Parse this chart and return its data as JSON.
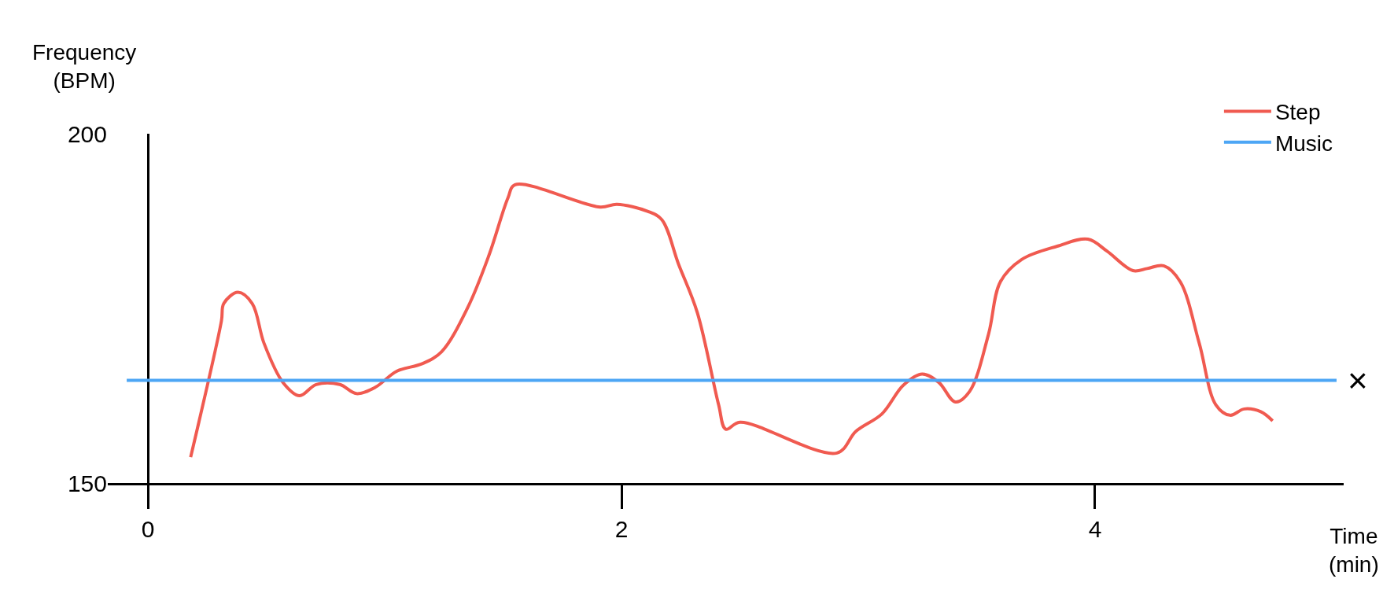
{
  "chart_data": {
    "type": "line",
    "xlabel": "Time (min)",
    "ylabel": "Frequency (BPM)",
    "xlim": [
      -0.17,
      5.05
    ],
    "ylim": [
      150,
      200
    ],
    "xticks": [
      0,
      2,
      4
    ],
    "yticks": [
      150,
      200
    ],
    "legend": "top right",
    "marker": "none",
    "line_style": "solid",
    "series": [
      {
        "name": "Step",
        "color": "#f05a50",
        "x": [
          0.18,
          0.31,
          0.32,
          0.38,
          0.44,
          0.49,
          0.57,
          0.64,
          0.71,
          0.81,
          0.88,
          0.96,
          1.05,
          1.16,
          1.24,
          1.35,
          1.44,
          1.52,
          1.55,
          1.91,
          1.98,
          2.11,
          2.17,
          2.24,
          2.32,
          2.41,
          2.44,
          2.5,
          2.91,
          2.99,
          3.1,
          3.19,
          3.27,
          3.34,
          3.41,
          3.47,
          3.55,
          3.6,
          3.69,
          3.84,
          3.97,
          4.05,
          4.16,
          4.22,
          4.29,
          4.36,
          4.44,
          4.51,
          4.57,
          4.63,
          4.7,
          4.75
        ],
        "values": [
          153.7,
          173.2,
          175.7,
          177.3,
          175.7,
          170.0,
          164.4,
          162.5,
          164.1,
          164.1,
          162.8,
          163.7,
          166.0,
          167.1,
          168.8,
          175.1,
          182.6,
          190.8,
          192.7,
          189.5,
          189.9,
          188.9,
          187.7,
          181.4,
          174.4,
          161.2,
          157.7,
          158.7,
          154.3,
          157.4,
          159.9,
          164.0,
          165.6,
          164.4,
          161.6,
          163.1,
          171.3,
          178.8,
          182.0,
          183.9,
          184.9,
          183.2,
          180.4,
          180.7,
          181.1,
          178.8,
          170.0,
          161.2,
          159.7,
          160.6,
          160.2,
          158.9
        ]
      },
      {
        "name": "Music",
        "color": "#4da6f5",
        "x": [
          -0.09,
          5.02
        ],
        "values": [
          164.7,
          164.7
        ]
      }
    ],
    "annotations": [
      {
        "text": "×",
        "x": 5.02,
        "y": 164.7
      }
    ]
  }
}
